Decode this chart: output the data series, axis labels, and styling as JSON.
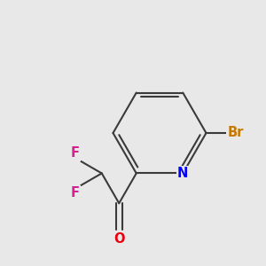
{
  "background_color": "#e8e8e8",
  "bond_color": "#3a3a3a",
  "atom_colors": {
    "F": "#d42090",
    "O": "#e8000d",
    "N": "#0000ff",
    "Br": "#c87800"
  },
  "figsize": [
    3.0,
    3.0
  ],
  "dpi": 100
}
